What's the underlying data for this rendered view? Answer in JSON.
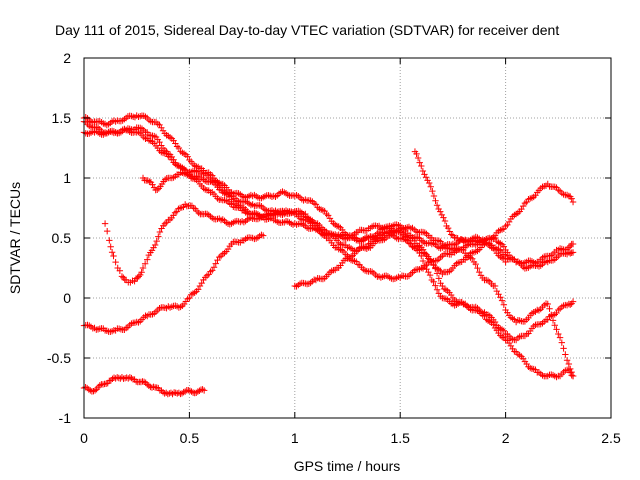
{
  "chart_data": {
    "type": "scatter",
    "title": "Day 111 of 2015, Sidereal Day-to-day VTEC variation (SDTVAR) for receiver dent",
    "xlabel": "GPS time / hours",
    "ylabel": "SDTVAR / TECUs",
    "xlim": [
      0,
      2.5
    ],
    "ylim": [
      -1,
      2
    ],
    "xticks": [
      "0",
      "0.5",
      "1",
      "1.5",
      "2",
      "2.5"
    ],
    "yticks": [
      "-1",
      "-0.5",
      "0",
      "0.5",
      "1",
      "1.5",
      "2"
    ],
    "grid": true,
    "marker": "+",
    "series_color": "#ff0000",
    "series": [
      {
        "x": [
          0.0,
          0.05,
          0.1,
          0.15,
          0.2,
          0.25,
          0.3,
          0.35,
          0.4,
          0.45,
          0.5,
          0.55,
          0.6,
          0.65,
          0.7,
          0.75,
          0.8,
          0.85,
          0.9,
          0.95,
          1.0,
          1.05,
          1.1,
          1.15,
          1.2,
          1.25,
          1.3,
          1.35,
          1.4,
          1.45,
          1.5,
          1.55,
          1.6,
          1.65,
          1.7,
          1.75,
          1.8,
          1.85,
          1.9,
          1.95,
          2.0,
          2.05,
          2.1,
          2.15,
          2.2,
          2.25,
          2.3,
          2.32
        ],
        "y": [
          1.5,
          1.47,
          1.45,
          1.47,
          1.5,
          1.52,
          1.5,
          1.45,
          1.35,
          1.25,
          1.15,
          1.08,
          1.0,
          0.92,
          0.85,
          0.8,
          0.78,
          0.75,
          0.72,
          0.7,
          0.72,
          0.68,
          0.62,
          0.55,
          0.48,
          0.42,
          0.4,
          0.42,
          0.48,
          0.52,
          0.5,
          0.45,
          0.42,
          0.3,
          0.1,
          0.0,
          -0.05,
          -0.1,
          -0.15,
          -0.25,
          -0.35,
          -0.45,
          -0.55,
          -0.62,
          -0.65,
          -0.65,
          -0.6,
          -0.65
        ]
      },
      {
        "x": [
          0.0,
          0.05,
          0.1,
          0.15,
          0.2,
          0.25,
          0.3,
          0.35,
          0.4,
          0.45,
          0.5,
          0.55,
          0.6,
          0.65,
          0.7,
          0.75,
          0.8,
          0.85,
          0.9,
          0.95,
          1.0,
          1.05,
          1.1,
          1.15,
          1.2,
          1.25,
          1.3,
          1.35,
          1.4,
          1.45,
          1.5,
          1.55,
          1.6,
          1.65,
          1.7,
          1.75,
          1.8,
          1.85,
          1.9,
          1.95,
          2.0,
          2.05,
          2.1,
          2.15,
          2.2,
          2.25,
          2.3,
          2.32
        ],
        "y": [
          1.47,
          1.42,
          1.38,
          1.38,
          1.4,
          1.42,
          1.38,
          1.32,
          1.2,
          1.1,
          1.03,
          1.0,
          0.97,
          0.9,
          0.82,
          0.75,
          0.7,
          0.67,
          0.65,
          0.63,
          0.62,
          0.6,
          0.57,
          0.53,
          0.52,
          0.52,
          0.55,
          0.58,
          0.6,
          0.58,
          0.55,
          0.45,
          0.35,
          0.15,
          0.0,
          -0.05,
          -0.05,
          -0.08,
          -0.12,
          -0.2,
          -0.3,
          -0.35,
          -0.3,
          -0.22,
          -0.18,
          -0.1,
          -0.05,
          -0.03
        ]
      },
      {
        "x": [
          0.0,
          0.05,
          0.1,
          0.15,
          0.2,
          0.25,
          0.3,
          0.35,
          0.4,
          0.45,
          0.5,
          0.55,
          0.6,
          0.65,
          0.7,
          0.75,
          0.8,
          0.85,
          0.9,
          0.95,
          1.0,
          1.05,
          1.1,
          1.15,
          1.2,
          1.25,
          1.3,
          1.35,
          1.4,
          1.45,
          1.5,
          1.55,
          1.6,
          1.65,
          1.7,
          1.75,
          1.8,
          1.85,
          1.9,
          1.95,
          2.0,
          2.05,
          2.1,
          2.15,
          2.2,
          2.25,
          2.3,
          2.32
        ],
        "y": [
          1.38,
          1.38,
          1.37,
          1.38,
          1.4,
          1.38,
          1.33,
          1.25,
          1.18,
          1.1,
          1.02,
          0.95,
          0.88,
          0.82,
          0.78,
          0.73,
          0.7,
          0.68,
          0.7,
          0.72,
          0.72,
          0.7,
          0.6,
          0.5,
          0.42,
          0.35,
          0.28,
          0.22,
          0.18,
          0.17,
          0.17,
          0.2,
          0.25,
          0.3,
          0.35,
          0.38,
          0.4,
          0.3,
          0.15,
          0.1,
          -0.1,
          -0.2,
          -0.18,
          -0.1,
          -0.05,
          -0.3,
          -0.55,
          -0.65
        ]
      },
      {
        "x": [
          0.28,
          0.31,
          0.34,
          0.37,
          0.4,
          0.45,
          0.5,
          0.55,
          0.6,
          0.65,
          0.7,
          0.75,
          0.8,
          0.85,
          0.9,
          0.95,
          1.0,
          1.05,
          1.1,
          1.15,
          1.2,
          1.25,
          1.3,
          1.35,
          1.4,
          1.45,
          1.5,
          1.55,
          1.6,
          1.65,
          1.7,
          1.75,
          1.8,
          1.85,
          1.9,
          1.95,
          2.0,
          2.05,
          2.1,
          2.15,
          2.2,
          2.25,
          2.3,
          2.32
        ],
        "y": [
          1.0,
          0.97,
          0.9,
          0.95,
          1.0,
          1.03,
          1.05,
          1.05,
          1.03,
          0.95,
          0.88,
          0.85,
          0.85,
          0.84,
          0.85,
          0.88,
          0.85,
          0.82,
          0.78,
          0.7,
          0.6,
          0.52,
          0.48,
          0.5,
          0.52,
          0.55,
          0.55,
          0.5,
          0.4,
          0.3,
          0.2,
          0.25,
          0.32,
          0.38,
          0.45,
          0.42,
          0.35,
          0.3,
          0.3,
          0.3,
          0.35,
          0.4,
          0.42,
          0.45
        ]
      },
      {
        "x": [
          0.1,
          0.12,
          0.14,
          0.16,
          0.18,
          0.2,
          0.22,
          0.24,
          0.26,
          0.28,
          0.3,
          0.33,
          0.36,
          0.4,
          0.44,
          0.48,
          0.52,
          0.56,
          0.6,
          0.65,
          0.7,
          0.75,
          0.8,
          0.85,
          0.9,
          0.95,
          1.0,
          1.05,
          1.1,
          1.15,
          1.2,
          1.25,
          1.3,
          1.35,
          1.4,
          1.45,
          1.5,
          1.55,
          1.6,
          1.65,
          1.7,
          1.75,
          1.8,
          1.85,
          1.9,
          1.95,
          2.0,
          2.05,
          2.1,
          2.15,
          2.2,
          2.25,
          2.3,
          2.32
        ],
        "y": [
          0.62,
          0.48,
          0.35,
          0.25,
          0.18,
          0.15,
          0.13,
          0.14,
          0.18,
          0.25,
          0.32,
          0.42,
          0.55,
          0.65,
          0.72,
          0.78,
          0.75,
          0.7,
          0.68,
          0.65,
          0.62,
          0.64,
          0.66,
          0.68,
          0.7,
          0.72,
          0.7,
          0.65,
          0.58,
          0.55,
          0.52,
          0.5,
          0.48,
          0.5,
          0.55,
          0.6,
          0.6,
          0.58,
          0.55,
          0.5,
          0.45,
          0.4,
          0.42,
          0.45,
          0.48,
          0.52,
          0.6,
          0.7,
          0.8,
          0.88,
          0.95,
          0.9,
          0.85,
          0.8
        ]
      },
      {
        "x": [
          0.0,
          0.05,
          0.1,
          0.15,
          0.2,
          0.25,
          0.3,
          0.35,
          0.4,
          0.45,
          0.5,
          0.55,
          0.6,
          0.65,
          0.7,
          0.75,
          0.8,
          0.85
        ],
        "y": [
          -0.23,
          -0.25,
          -0.27,
          -0.27,
          -0.25,
          -0.2,
          -0.15,
          -0.1,
          -0.07,
          -0.08,
          0.0,
          0.1,
          0.22,
          0.35,
          0.45,
          0.48,
          0.5,
          0.52
        ]
      },
      {
        "x": [
          0.0,
          0.03,
          0.06,
          0.09,
          0.12,
          0.15,
          0.18,
          0.21,
          0.24,
          0.27,
          0.3,
          0.33,
          0.36,
          0.39,
          0.42,
          0.45,
          0.48,
          0.51,
          0.54,
          0.57
        ],
        "y": [
          -0.75,
          -0.77,
          -0.76,
          -0.72,
          -0.69,
          -0.67,
          -0.66,
          -0.67,
          -0.68,
          -0.7,
          -0.72,
          -0.74,
          -0.77,
          -0.79,
          -0.8,
          -0.79,
          -0.78,
          -0.78,
          -0.78,
          -0.77
        ]
      },
      {
        "x": [
          1.0,
          1.05,
          1.1,
          1.15,
          1.2,
          1.25,
          1.3,
          1.35,
          1.4,
          1.45,
          1.5,
          1.55,
          1.6,
          1.65,
          1.7,
          1.75,
          1.8,
          1.85,
          1.9,
          1.95,
          2.0
        ],
        "y": [
          0.1,
          0.12,
          0.15,
          0.18,
          0.25,
          0.33,
          0.4,
          0.45,
          0.5,
          0.55,
          0.58,
          0.52,
          0.48,
          0.45,
          0.42,
          0.45,
          0.48,
          0.5,
          0.48,
          0.4,
          0.3
        ]
      },
      {
        "x": [
          1.57,
          1.6,
          1.63,
          1.66,
          1.69,
          1.72,
          1.75,
          1.78,
          1.81,
          1.85,
          1.9,
          1.95,
          2.0,
          2.05,
          2.1,
          2.15,
          2.2,
          2.25,
          2.3,
          2.32
        ],
        "y": [
          1.22,
          1.1,
          0.98,
          0.85,
          0.72,
          0.6,
          0.52,
          0.48,
          0.48,
          0.47,
          0.48,
          0.5,
          0.4,
          0.3,
          0.25,
          0.27,
          0.3,
          0.35,
          0.38,
          0.38
        ]
      }
    ]
  }
}
